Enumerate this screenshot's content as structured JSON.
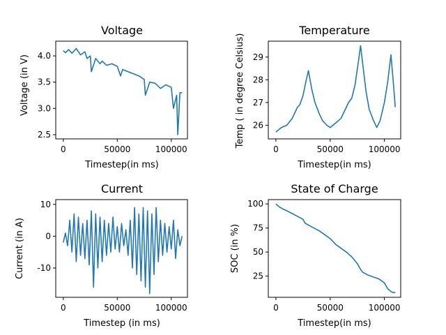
{
  "chart_data": [
    {
      "type": "line",
      "title": "Voltage",
      "xlabel": "Timestep(in ms)",
      "ylabel": "Voltage (in V)",
      "xlim": [
        -7000,
        115000
      ],
      "ylim": [
        2.42,
        4.28
      ],
      "xticks": [
        0,
        50000,
        100000
      ],
      "xtick_labels": [
        "0",
        "50000",
        "100000"
      ],
      "yticks": [
        2.5,
        3.0,
        3.5,
        4.0
      ],
      "ytick_labels": [
        "2.5",
        "3.0",
        "3.5",
        "4.0"
      ],
      "series": [
        {
          "color": "#1f77b4",
          "x": [
            0,
            2000,
            5000,
            8000,
            12000,
            16000,
            20000,
            22000,
            25000,
            26000,
            30000,
            34000,
            36000,
            40000,
            45000,
            50000,
            53000,
            55000,
            60000,
            65000,
            70000,
            75000,
            76000,
            80000,
            85000,
            90000,
            95000,
            100000,
            102000,
            105000,
            106000,
            108000,
            110000
          ],
          "y": [
            4.1,
            4.06,
            4.12,
            4.05,
            4.14,
            4.02,
            4.08,
            3.95,
            4.0,
            3.7,
            3.95,
            3.85,
            3.9,
            3.82,
            3.85,
            3.8,
            3.62,
            3.74,
            3.7,
            3.66,
            3.62,
            3.55,
            3.25,
            3.5,
            3.48,
            3.38,
            3.45,
            3.4,
            3.0,
            3.25,
            2.5,
            3.3,
            3.3
          ]
        }
      ],
      "grid": false,
      "legend": "none"
    },
    {
      "type": "line",
      "title": "Temperature",
      "xlabel": "Timestep(in ms)",
      "ylabel": "Temp ( in degree Celsius)",
      "xlim": [
        -7000,
        115000
      ],
      "ylim": [
        25.4,
        29.7
      ],
      "xticks": [
        0,
        50000,
        100000
      ],
      "xtick_labels": [
        "0",
        "50000",
        "100000"
      ],
      "yticks": [
        26,
        27,
        28,
        29
      ],
      "ytick_labels": [
        "26",
        "27",
        "28",
        "29"
      ],
      "series": [
        {
          "color": "#1f77b4",
          "x": [
            0,
            5000,
            10000,
            15000,
            18000,
            20000,
            22000,
            25000,
            28000,
            30000,
            33000,
            36000,
            40000,
            43000,
            47000,
            50000,
            55000,
            60000,
            63000,
            67000,
            70000,
            73000,
            76000,
            78000,
            80000,
            83000,
            86000,
            90000,
            93000,
            96000,
            100000,
            103000,
            106000,
            108000,
            110000
          ],
          "y": [
            25.7,
            25.9,
            26.0,
            26.3,
            26.6,
            26.8,
            26.9,
            27.3,
            28.0,
            28.4,
            27.6,
            27.0,
            26.5,
            26.2,
            26.0,
            25.9,
            26.1,
            26.3,
            26.6,
            27.0,
            27.2,
            27.8,
            28.8,
            29.5,
            28.7,
            27.5,
            26.7,
            26.2,
            25.9,
            26.2,
            27.0,
            27.9,
            29.1,
            28.0,
            26.8
          ]
        }
      ],
      "grid": false,
      "legend": "none"
    },
    {
      "type": "line",
      "title": "Current",
      "xlabel": "Timestep (in ms)",
      "ylabel": "Current (in A)",
      "xlim": [
        -7000,
        115000
      ],
      "ylim": [
        -19.2,
        11.5
      ],
      "xticks": [
        0,
        50000,
        100000
      ],
      "xtick_labels": [
        "0",
        "50000",
        "100000"
      ],
      "yticks": [
        -10,
        0,
        10
      ],
      "ytick_labels": [
        "-10",
        "0",
        "10"
      ],
      "series": [
        {
          "color": "#1f77b4",
          "x": [
            0,
            2000,
            4000,
            6000,
            8000,
            10000,
            12000,
            14000,
            16000,
            18000,
            20000,
            22000,
            24000,
            26000,
            28000,
            30000,
            32000,
            34000,
            36000,
            38000,
            40000,
            42000,
            44000,
            46000,
            48000,
            50000,
            52000,
            54000,
            56000,
            58000,
            60000,
            62000,
            64000,
            66000,
            68000,
            70000,
            72000,
            74000,
            76000,
            78000,
            80000,
            82000,
            84000,
            86000,
            88000,
            90000,
            92000,
            94000,
            96000,
            98000,
            100000,
            102000,
            104000,
            106000,
            108000,
            110000
          ],
          "y": [
            -2,
            1,
            -3,
            5,
            -5,
            7,
            -8,
            6,
            -6,
            4,
            -7,
            5,
            -9,
            8,
            -16,
            7,
            -10,
            6,
            -8,
            5,
            -6,
            4,
            -5,
            6,
            -4,
            3,
            -5,
            4,
            -3,
            2,
            -6,
            5,
            -10,
            9,
            -12,
            7,
            -14,
            9,
            -16,
            8,
            -18,
            7,
            -12,
            9,
            -8,
            5,
            -6,
            4,
            -5,
            3,
            -4,
            5,
            -7,
            2,
            -3,
            0
          ]
        }
      ],
      "grid": false,
      "legend": "none"
    },
    {
      "type": "line",
      "title": "State of Charge",
      "xlabel": "Timestep(in ms)",
      "ylabel": "SOC (in %)",
      "xlim": [
        -7000,
        115000
      ],
      "ylim": [
        3,
        104.5
      ],
      "xticks": [
        0,
        50000,
        100000
      ],
      "xtick_labels": [
        "0",
        "50000",
        "100000"
      ],
      "yticks": [
        25,
        50,
        75,
        100
      ],
      "ytick_labels": [
        "25",
        "50",
        "75",
        "100"
      ],
      "series": [
        {
          "color": "#1f77b4",
          "x": [
            0,
            3000,
            6000,
            10000,
            15000,
            20000,
            25000,
            27000,
            30000,
            35000,
            40000,
            45000,
            50000,
            55000,
            60000,
            65000,
            70000,
            75000,
            78000,
            80000,
            85000,
            90000,
            95000,
            100000,
            103000,
            106000,
            108000,
            110000
          ],
          "y": [
            100,
            97,
            95,
            93,
            90,
            87,
            84,
            80,
            78,
            75,
            72,
            68,
            64,
            58,
            54,
            50,
            45,
            38,
            32,
            29,
            26,
            24,
            22,
            18,
            12,
            9,
            8,
            8
          ]
        }
      ],
      "grid": false,
      "legend": "none"
    }
  ]
}
